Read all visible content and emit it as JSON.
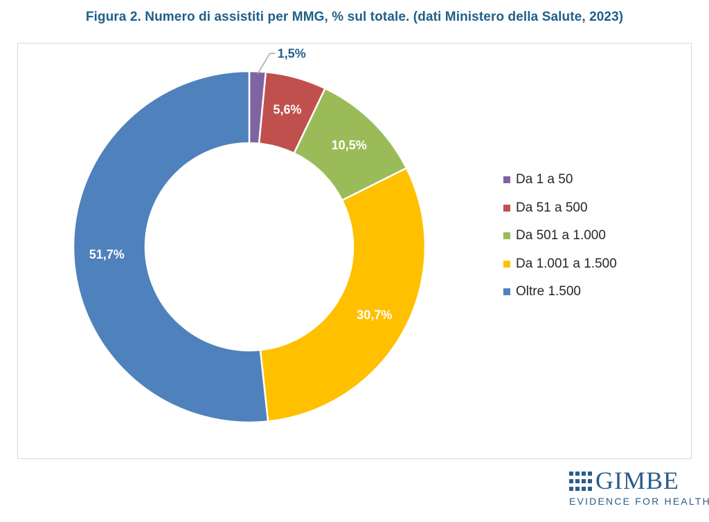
{
  "title": "Figura 2. Numero di assistiti per MMG, % sul totale. (dati Ministero della Salute, 2023)",
  "chart_data": {
    "type": "pie",
    "donut": true,
    "categories": [
      "Da 1 a 50",
      "Da 51 a 500",
      "Da 501 a 1.000",
      "Da 1.001 a 1.500",
      "Oltre 1.500"
    ],
    "values": [
      1.5,
      5.6,
      10.5,
      30.7,
      51.7
    ],
    "labels": [
      "1,5%",
      "5,6%",
      "10,5%",
      "30,7%",
      "51,7%"
    ],
    "colors": [
      "#8064a2",
      "#c0504d",
      "#9bbb59",
      "#ffc000",
      "#4f81bd"
    ],
    "legend_position": "right",
    "label_colors": {
      "inside": "#ffffff",
      "outside": "#1f5f8b",
      "leader_line": "#a6a6a6"
    }
  },
  "logo": {
    "name": "GIMBE",
    "tagline": "EVIDENCE FOR HEALTH",
    "color": "#2b5c8a"
  }
}
